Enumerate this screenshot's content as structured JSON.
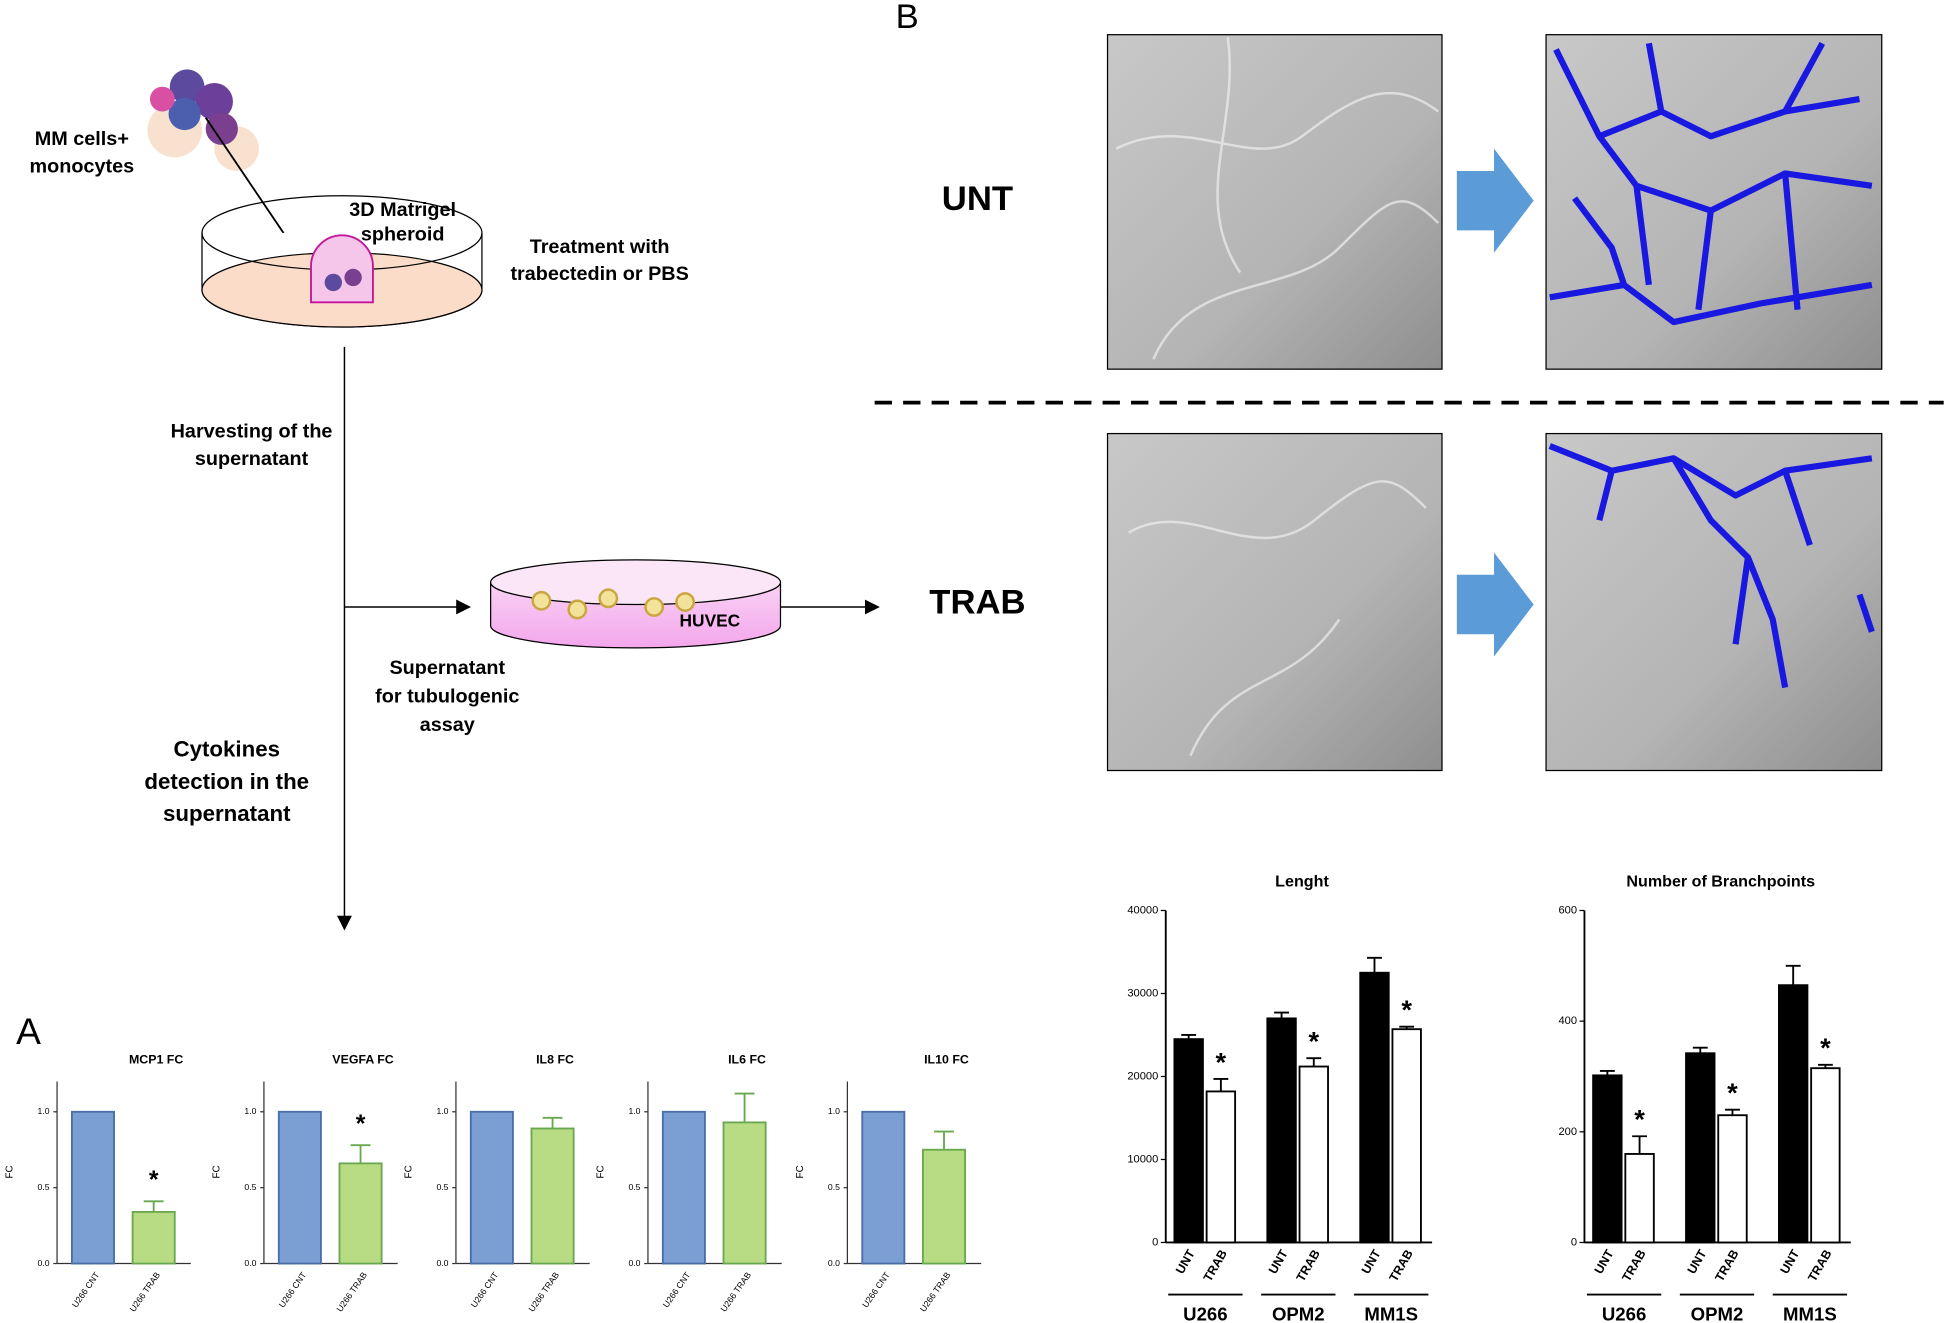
{
  "figure": {
    "panel_a": "A",
    "panel_b": "B",
    "mm_cells": [
      "MM cells+",
      "monocytes"
    ],
    "spheroid": [
      "3D Matrigel",
      "spheroid"
    ],
    "treatment": [
      "Treatment with",
      "trabectedin or PBS"
    ],
    "harvesting": [
      "Harvesting of the",
      "supernatant"
    ],
    "supernatant": [
      "Supernatant",
      "for tubulogenic",
      "assay"
    ],
    "cytokines": [
      "Cytokines",
      "detection in the",
      "supernatant"
    ],
    "huvec": "HUVEC",
    "row_labels": [
      "UNT",
      "TRAB"
    ]
  },
  "chart_data": [
    {
      "type": "bar",
      "title": "MCP1 FC",
      "y_label": "FC",
      "categories": [
        "U266 CNT",
        "U266 TRAB"
      ],
      "values": [
        1.0,
        0.34
      ],
      "errors": [
        null,
        0.07
      ],
      "significance_labels": [
        null,
        "*"
      ],
      "colors": [
        "#7b9fd3",
        "#b8dc84"
      ],
      "edge_colors": [
        "#4a6fa8",
        "#6aa84f"
      ],
      "ylim": [
        0,
        1.2
      ],
      "yticks": [
        {
          "value": 0,
          "label": "0.0"
        },
        {
          "value": 0.5,
          "label": "0.5"
        },
        {
          "value": 1,
          "label": "1.0"
        }
      ]
    },
    {
      "type": "bar",
      "title": "VEGFA FC",
      "y_label": "FC",
      "categories": [
        "U266 CNT",
        "U266 TRAB"
      ],
      "values": [
        1.0,
        0.66
      ],
      "errors": [
        null,
        0.12
      ],
      "significance_labels": [
        null,
        "*"
      ],
      "colors": [
        "#7b9fd3",
        "#b8dc84"
      ],
      "edge_colors": [
        "#4a6fa8",
        "#6aa84f"
      ],
      "ylim": [
        0,
        1.2
      ],
      "yticks": [
        {
          "value": 0,
          "label": "0.0"
        },
        {
          "value": 0.5,
          "label": "0.5"
        },
        {
          "value": 1,
          "label": "1.0"
        }
      ]
    },
    {
      "type": "bar",
      "title": "IL8  FC",
      "y_label": "FC",
      "categories": [
        "U266 CNT",
        "U266 TRAB"
      ],
      "values": [
        1.0,
        0.89
      ],
      "errors": [
        null,
        0.07
      ],
      "colors": [
        "#7b9fd3",
        "#b8dc84"
      ],
      "edge_colors": [
        "#4a6fa8",
        "#6aa84f"
      ],
      "ylim": [
        0,
        1.2
      ],
      "yticks": [
        {
          "value": 0,
          "label": "0.0"
        },
        {
          "value": 0.5,
          "label": "0.5"
        },
        {
          "value": 1,
          "label": "1.0"
        }
      ]
    },
    {
      "type": "bar",
      "title": "IL6  FC",
      "y_label": "FC",
      "categories": [
        "U266 CNT",
        "U266 TRAB"
      ],
      "values": [
        1.0,
        0.93
      ],
      "errors": [
        null,
        0.19
      ],
      "colors": [
        "#7b9fd3",
        "#b8dc84"
      ],
      "edge_colors": [
        "#4a6fa8",
        "#6aa84f"
      ],
      "ylim": [
        0,
        1.2
      ],
      "yticks": [
        {
          "value": 0,
          "label": "0.0"
        },
        {
          "value": 0.5,
          "label": "0.5"
        },
        {
          "value": 1,
          "label": "1.0"
        }
      ]
    },
    {
      "type": "bar",
      "title": "IL10  FC",
      "y_label": "FC",
      "categories": [
        "U266 CNT",
        "U266 TRAB"
      ],
      "values": [
        1.0,
        0.75
      ],
      "errors": [
        null,
        0.12
      ],
      "colors": [
        "#7b9fd3",
        "#b8dc84"
      ],
      "edge_colors": [
        "#4a6fa8",
        "#6aa84f"
      ],
      "ylim": [
        0,
        1.2
      ],
      "yticks": [
        {
          "value": 0,
          "label": "0.0"
        },
        {
          "value": 0.5,
          "label": "0.5"
        },
        {
          "value": 1,
          "label": "1.0"
        }
      ]
    },
    {
      "type": "grouped_bar",
      "title": "Lenght",
      "categories": [
        "U266",
        "OPM2",
        "MM1S"
      ],
      "series": [
        {
          "name": "UNT",
          "color": "#000000",
          "values": [
            24500,
            27000,
            32500
          ],
          "errors": [
            500,
            700,
            1800
          ]
        },
        {
          "name": "TRAB",
          "color": "#ffffff",
          "values": [
            18200,
            21200,
            25700
          ],
          "errors": [
            1500,
            1000,
            300
          ],
          "significance_labels": [
            "*",
            "*",
            "*"
          ]
        }
      ],
      "ylim": [
        0,
        40000
      ],
      "yticks": [
        0,
        10000,
        20000,
        30000,
        40000
      ]
    },
    {
      "type": "grouped_bar",
      "title": "Number of Branchpoints",
      "categories": [
        "U266",
        "OPM2",
        "MM1S"
      ],
      "series": [
        {
          "name": "UNT",
          "color": "#000000",
          "values": [
            302,
            342,
            465
          ],
          "errors": [
            8,
            10,
            35
          ]
        },
        {
          "name": "TRAB",
          "color": "#ffffff",
          "values": [
            160,
            230,
            315
          ],
          "errors": [
            32,
            10,
            6
          ],
          "significance_labels": [
            "*",
            "*",
            "*"
          ]
        }
      ],
      "ylim": [
        0,
        600
      ],
      "yticks": [
        0,
        200,
        400,
        600
      ]
    }
  ]
}
